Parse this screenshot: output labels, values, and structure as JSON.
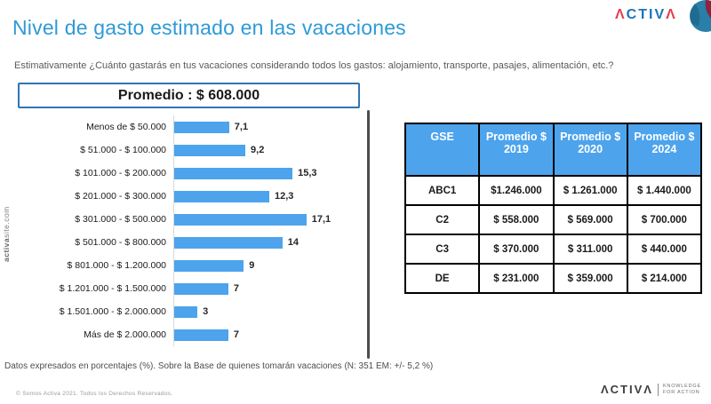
{
  "header": {
    "title": "Nivel de gasto estimado en las vacaciones",
    "subtitle": "Estimativamente ¿Cuánto gastarás en tus vacaciones considerando todos los gastos: alojamiento, transporte, pasajes, alimentación, etc.?",
    "logo": {
      "a1": "Λ",
      "mid": "CTIV",
      "a2": "Λ"
    },
    "logo_colors": {
      "red": "#e63c4f",
      "blue": "#1b75bc"
    }
  },
  "promedio_box": {
    "label": "Promedio : $ 608.000"
  },
  "watermark": {
    "bold": "activa",
    "rest": "site.com"
  },
  "chart_data": {
    "type": "bar",
    "orientation": "horizontal",
    "categories": [
      "Menos de $ 50.000",
      "$ 51.000 - $ 100.000",
      "$ 101.000 - $ 200.000",
      "$ 201.000 - $ 300.000",
      "$ 301.000 - $ 500.000",
      "$ 501.000 - $ 800.000",
      "$ 801.000 - $ 1.200.000",
      "$ 1.201.000 - $ 1.500.000",
      "$ 1.501.000 - $ 2.000.000",
      "Más de $ 2.000.000"
    ],
    "values": [
      7.1,
      9.2,
      15.3,
      12.3,
      17.1,
      14,
      9,
      7,
      3,
      7
    ],
    "value_labels": [
      "7,1",
      "9,2",
      "15,3",
      "12,3",
      "17,1",
      "14",
      "9",
      "7",
      "3",
      "7"
    ],
    "bar_color": "#4da3ec",
    "xlim": [
      0,
      20
    ],
    "grid": false,
    "legend": false
  },
  "table": {
    "columns": [
      "GSE",
      "Promedio $ 2019",
      "Promedio $ 2020",
      "Promedio $ 2024"
    ],
    "rows": [
      [
        "ABC1",
        "$1.246.000",
        "$ 1.261.000",
        "$ 1.440.000"
      ],
      [
        "C2",
        "$ 558.000",
        "$ 569.000",
        "$ 700.000"
      ],
      [
        "C3",
        "$ 370.000",
        "$ 311.000",
        "$ 440.000"
      ],
      [
        "DE",
        "$ 231.000",
        "$ 359.000",
        "$ 214.000"
      ]
    ],
    "header_bg": "#4da3ec"
  },
  "footer": {
    "note": "Datos expresados en porcentajes (%). Sobre la Base de quienes tomarán vacaciones (N: 351  EM: +/- 5,2 %)",
    "copyright": "© Somos Activa 2021. Todos los Derechos Reservados.",
    "logo": {
      "a1": "Λ",
      "mid": "CTIV",
      "a2": "Λ"
    },
    "tagline_line1": "KNOWLEDGE",
    "tagline_line2": "FOR ACTION"
  }
}
